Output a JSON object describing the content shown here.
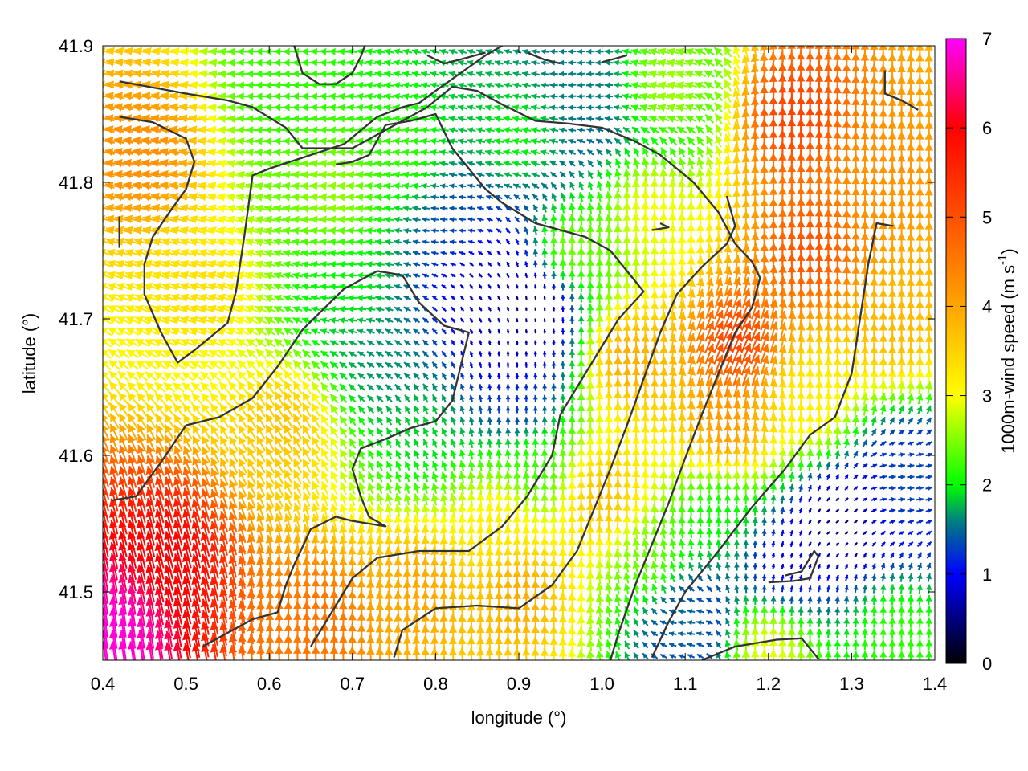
{
  "chart_data": {
    "type": "vector-field",
    "xlabel": "longitude (°)",
    "ylabel": "latitude (°)",
    "xlim": [
      0.4,
      1.4
    ],
    "ylim": [
      41.45,
      41.9
    ],
    "xticks": [
      "0.4",
      "0.5",
      "0.6",
      "0.7",
      "0.8",
      "0.9",
      "1.0",
      "1.1",
      "1.2",
      "1.3",
      "1.4"
    ],
    "yticks": [
      "41.5",
      "41.6",
      "41.7",
      "41.8",
      "41.9"
    ],
    "grid": false,
    "colorbar": {
      "label_main": "1000m-wind speed (m s",
      "label_sup": "-1",
      "label_end": ")",
      "range": [
        0,
        7
      ],
      "ticks": [
        "0",
        "1",
        "2",
        "3",
        "4",
        "5",
        "6",
        "7"
      ],
      "stops": [
        {
          "value": 0,
          "color": "#000000"
        },
        {
          "value": 1,
          "color": "#0000ff"
        },
        {
          "value": 1.6,
          "color": "#008080"
        },
        {
          "value": 2,
          "color": "#00ff00"
        },
        {
          "value": 3,
          "color": "#ffff00"
        },
        {
          "value": 4,
          "color": "#ffa500"
        },
        {
          "value": 5,
          "color": "#ff5000"
        },
        {
          "value": 6,
          "color": "#ff0000"
        },
        {
          "value": 7,
          "color": "#ff00ff"
        }
      ]
    },
    "wind_centers": [
      {
        "lon": 0.42,
        "lat": 41.47,
        "u": -1.0,
        "v": 6.8
      },
      {
        "lon": 0.48,
        "lat": 41.52,
        "u": -1.5,
        "v": 5.8
      },
      {
        "lon": 0.45,
        "lat": 41.82,
        "u": -4.2,
        "v": 0.8
      },
      {
        "lon": 0.52,
        "lat": 41.72,
        "u": -3.2,
        "v": 1.0
      },
      {
        "lon": 0.62,
        "lat": 41.62,
        "u": -1.8,
        "v": 3.2
      },
      {
        "lon": 0.66,
        "lat": 41.48,
        "u": 0.0,
        "v": 4.6
      },
      {
        "lon": 0.62,
        "lat": 41.87,
        "u": -2.2,
        "v": 0.0
      },
      {
        "lon": 0.68,
        "lat": 41.79,
        "u": -2.6,
        "v": 0.2
      },
      {
        "lon": 0.76,
        "lat": 41.82,
        "u": -2.2,
        "v": 0.3
      },
      {
        "lon": 0.7,
        "lat": 41.72,
        "u": -2.0,
        "v": 0.0
      },
      {
        "lon": 0.74,
        "lat": 41.67,
        "u": -1.4,
        "v": 0.9
      },
      {
        "lon": 0.78,
        "lat": 41.62,
        "u": -0.8,
        "v": 1.7
      },
      {
        "lon": 0.82,
        "lat": 41.77,
        "u": -1.4,
        "v": 0.0
      },
      {
        "lon": 0.86,
        "lat": 41.72,
        "u": -0.4,
        "v": 0.6
      },
      {
        "lon": 0.89,
        "lat": 41.68,
        "u": 0.0,
        "v": 0.6
      },
      {
        "lon": 0.92,
        "lat": 41.71,
        "u": 0.0,
        "v": 0.2
      },
      {
        "lon": 0.9,
        "lat": 41.64,
        "u": 0.0,
        "v": 1.2
      },
      {
        "lon": 0.92,
        "lat": 41.59,
        "u": -0.2,
        "v": 2.2
      },
      {
        "lon": 0.88,
        "lat": 41.55,
        "u": -0.4,
        "v": 3.2
      },
      {
        "lon": 0.78,
        "lat": 41.5,
        "u": -0.3,
        "v": 4.0
      },
      {
        "lon": 0.9,
        "lat": 41.5,
        "u": 0.0,
        "v": 4.0
      },
      {
        "lon": 1.0,
        "lat": 41.57,
        "u": 0.2,
        "v": 3.8
      },
      {
        "lon": 1.03,
        "lat": 41.67,
        "u": 0.2,
        "v": 4.0
      },
      {
        "lon": 0.96,
        "lat": 41.75,
        "u": 0.0,
        "v": 2.6
      },
      {
        "lon": 1.06,
        "lat": 41.78,
        "u": 0.0,
        "v": 3.0
      },
      {
        "lon": 0.9,
        "lat": 41.83,
        "u": -2.0,
        "v": 0.4
      },
      {
        "lon": 0.98,
        "lat": 41.87,
        "u": -1.6,
        "v": -0.2
      },
      {
        "lon": 1.08,
        "lat": 41.87,
        "u": -2.6,
        "v": 0.6
      },
      {
        "lon": 1.16,
        "lat": 41.68,
        "u": 2.2,
        "v": 4.8
      },
      {
        "lon": 1.23,
        "lat": 41.85,
        "u": 0.0,
        "v": 5.2
      },
      {
        "lon": 1.25,
        "lat": 41.75,
        "u": 0.0,
        "v": 5.0
      },
      {
        "lon": 1.33,
        "lat": 41.8,
        "u": 0.0,
        "v": 4.2
      },
      {
        "lon": 1.35,
        "lat": 41.7,
        "u": 0.0,
        "v": 3.8
      },
      {
        "lon": 1.25,
        "lat": 41.64,
        "u": 0.0,
        "v": 3.2
      },
      {
        "lon": 1.28,
        "lat": 41.55,
        "u": 0.4,
        "v": 0.2
      },
      {
        "lon": 1.36,
        "lat": 41.58,
        "u": 1.4,
        "v": 0.0
      },
      {
        "lon": 1.22,
        "lat": 41.52,
        "u": 0.2,
        "v": 0.8
      },
      {
        "lon": 1.1,
        "lat": 41.48,
        "u": -1.6,
        "v": 0.0
      },
      {
        "lon": 1.06,
        "lat": 41.52,
        "u": -0.5,
        "v": 2.4
      },
      {
        "lon": 1.14,
        "lat": 41.56,
        "u": 0.0,
        "v": 2.0
      },
      {
        "lon": 1.35,
        "lat": 41.47,
        "u": 0.0,
        "v": 2.2
      },
      {
        "lon": 1.2,
        "lat": 41.46,
        "u": 0.0,
        "v": 3.0
      },
      {
        "lon": 1.15,
        "lat": 41.62,
        "u": 0.4,
        "v": 4.2
      }
    ],
    "contours": [
      [
        [
          0.42,
          41.874
        ],
        [
          0.5,
          41.865
        ],
        [
          0.55,
          41.86
        ],
        [
          0.58,
          41.855
        ],
        [
          0.62,
          41.84
        ],
        [
          0.64,
          41.825
        ],
        [
          0.7,
          41.825
        ],
        [
          0.73,
          41.835
        ],
        [
          0.76,
          41.845
        ],
        [
          0.79,
          41.855
        ],
        [
          0.82,
          41.87
        ],
        [
          0.85,
          41.867
        ],
        [
          0.88,
          41.857
        ],
        [
          0.92,
          41.845
        ],
        [
          0.96,
          41.843
        ],
        [
          1.0,
          41.84
        ],
        [
          1.04,
          41.83
        ],
        [
          1.07,
          41.82
        ],
        [
          1.11,
          41.8
        ],
        [
          1.14,
          41.778
        ],
        [
          1.16,
          41.755
        ],
        [
          1.18,
          41.742
        ],
        [
          1.19,
          41.73
        ],
        [
          1.18,
          41.708
        ],
        [
          1.16,
          41.69
        ],
        [
          1.14,
          41.66
        ],
        [
          1.12,
          41.63
        ],
        [
          1.1,
          41.598
        ],
        [
          1.08,
          41.565
        ],
        [
          1.06,
          41.535
        ],
        [
          1.04,
          41.505
        ],
        [
          1.02,
          41.47
        ],
        [
          1.01,
          41.45
        ]
      ],
      [
        [
          0.42,
          41.848
        ],
        [
          0.46,
          41.844
        ],
        [
          0.5,
          41.832
        ],
        [
          0.51,
          41.815
        ],
        [
          0.5,
          41.795
        ],
        [
          0.48,
          41.778
        ],
        [
          0.46,
          41.76
        ],
        [
          0.45,
          41.74
        ],
        [
          0.45,
          41.718
        ],
        [
          0.47,
          41.69
        ],
        [
          0.49,
          41.668
        ],
        [
          0.51,
          41.677
        ],
        [
          0.55,
          41.697
        ],
        [
          0.56,
          41.72
        ],
        [
          0.57,
          41.76
        ],
        [
          0.58,
          41.805
        ],
        [
          0.6,
          41.81
        ],
        [
          0.64,
          41.818
        ],
        [
          0.69,
          41.828
        ],
        [
          0.73,
          41.848
        ],
        [
          0.76,
          41.855
        ],
        [
          0.78,
          41.858
        ],
        [
          0.8,
          41.867
        ],
        [
          0.83,
          41.88
        ],
        [
          0.86,
          41.893
        ],
        [
          0.88,
          41.9
        ]
      ],
      [
        [
          0.41,
          41.567
        ],
        [
          0.44,
          41.57
        ],
        [
          0.47,
          41.595
        ],
        [
          0.5,
          41.622
        ],
        [
          0.54,
          41.628
        ],
        [
          0.58,
          41.642
        ],
        [
          0.61,
          41.665
        ],
        [
          0.64,
          41.692
        ],
        [
          0.69,
          41.722
        ],
        [
          0.73,
          41.735
        ],
        [
          0.76,
          41.732
        ],
        [
          0.78,
          41.712
        ],
        [
          0.81,
          41.695
        ],
        [
          0.84,
          41.69
        ],
        [
          0.83,
          41.665
        ],
        [
          0.82,
          41.64
        ],
        [
          0.8,
          41.625
        ],
        [
          0.77,
          41.62
        ],
        [
          0.74,
          41.612
        ],
        [
          0.71,
          41.605
        ],
        [
          0.7,
          41.59
        ],
        [
          0.71,
          41.57
        ],
        [
          0.72,
          41.555
        ],
        [
          0.74,
          41.548
        ],
        [
          0.7,
          41.552
        ],
        [
          0.68,
          41.555
        ],
        [
          0.65,
          41.546
        ],
        [
          0.63,
          41.52
        ],
        [
          0.62,
          41.505
        ],
        [
          0.61,
          41.485
        ],
        [
          0.58,
          41.48
        ],
        [
          0.55,
          41.47
        ],
        [
          0.52,
          41.46
        ]
      ],
      [
        [
          0.65,
          41.46
        ],
        [
          0.68,
          41.49
        ],
        [
          0.7,
          41.51
        ],
        [
          0.73,
          41.525
        ],
        [
          0.78,
          41.53
        ],
        [
          0.84,
          41.53
        ],
        [
          0.88,
          41.548
        ],
        [
          0.91,
          41.57
        ],
        [
          0.94,
          41.6
        ],
        [
          0.95,
          41.63
        ],
        [
          0.98,
          41.66
        ],
        [
          1.02,
          41.7
        ],
        [
          1.05,
          41.72
        ],
        [
          1.03,
          41.735
        ],
        [
          1.01,
          41.75
        ],
        [
          0.98,
          41.76
        ],
        [
          0.92,
          41.77
        ],
        [
          0.88,
          41.785
        ],
        [
          0.86,
          41.795
        ],
        [
          0.84,
          41.81
        ],
        [
          0.82,
          41.825
        ],
        [
          0.8,
          41.85
        ],
        [
          0.77,
          41.845
        ],
        [
          0.74,
          41.842
        ],
        [
          0.72,
          41.82
        ],
        [
          0.7,
          41.815
        ],
        [
          0.68,
          41.813
        ]
      ],
      [
        [
          0.75,
          41.452
        ],
        [
          0.76,
          41.472
        ],
        [
          0.8,
          41.488
        ],
        [
          0.85,
          41.49
        ],
        [
          0.9,
          41.488
        ],
        [
          0.94,
          41.505
        ],
        [
          0.97,
          41.53
        ],
        [
          0.99,
          41.56
        ],
        [
          1.01,
          41.59
        ],
        [
          1.03,
          41.622
        ],
        [
          1.05,
          41.656
        ],
        [
          1.07,
          41.69
        ],
        [
          1.09,
          41.718
        ],
        [
          1.12,
          41.738
        ],
        [
          1.15,
          41.755
        ],
        [
          1.16,
          41.768
        ],
        [
          1.15,
          41.79
        ]
      ],
      [
        [
          1.06,
          41.452
        ],
        [
          1.08,
          41.478
        ],
        [
          1.1,
          41.5
        ],
        [
          1.14,
          41.53
        ],
        [
          1.18,
          41.562
        ],
        [
          1.22,
          41.59
        ],
        [
          1.25,
          41.615
        ],
        [
          1.28,
          41.628
        ],
        [
          1.3,
          41.66
        ],
        [
          1.31,
          41.7
        ],
        [
          1.32,
          41.74
        ],
        [
          1.33,
          41.77
        ],
        [
          1.35,
          41.768
        ]
      ],
      [
        [
          1.12,
          41.45
        ],
        [
          1.16,
          41.46
        ],
        [
          1.21,
          41.465
        ],
        [
          1.24,
          41.466
        ],
        [
          1.26,
          41.451
        ]
      ],
      [
        [
          1.2,
          41.507
        ],
        [
          1.23,
          41.508
        ],
        [
          1.25,
          41.51
        ],
        [
          1.26,
          41.526
        ],
        [
          1.255,
          41.53
        ],
        [
          1.24,
          41.515
        ],
        [
          1.22,
          41.512
        ]
      ],
      [
        [
          0.63,
          41.9
        ],
        [
          0.64,
          41.88
        ],
        [
          0.66,
          41.872
        ],
        [
          0.68,
          41.872
        ],
        [
          0.7,
          41.88
        ],
        [
          0.71,
          41.892
        ],
        [
          0.715,
          41.9
        ]
      ],
      [
        [
          0.79,
          41.893
        ],
        [
          0.81,
          41.887
        ],
        [
          0.83,
          41.89
        ],
        [
          0.86,
          41.895
        ]
      ],
      [
        [
          1.0,
          41.888
        ],
        [
          1.03,
          41.893
        ]
      ],
      [
        [
          1.34,
          41.882
        ],
        [
          1.34,
          41.865
        ],
        [
          1.36,
          41.86
        ],
        [
          1.38,
          41.853
        ]
      ],
      [
        [
          0.42,
          41.775
        ],
        [
          0.42,
          41.762
        ],
        [
          0.42,
          41.752
        ]
      ],
      [
        [
          1.06,
          41.765
        ],
        [
          1.08,
          41.767
        ],
        [
          1.07,
          41.77
        ]
      ],
      [
        [
          0.91,
          41.895
        ],
        [
          0.93,
          41.89
        ],
        [
          0.95,
          41.887
        ]
      ]
    ]
  }
}
